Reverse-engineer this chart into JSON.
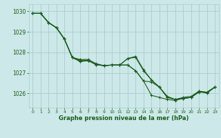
{
  "title": "Graphe pression niveau de la mer (hPa)",
  "background_color": "#cce8e8",
  "grid_color": "#aacccc",
  "line_color": "#1a5c1a",
  "text_color": "#1a5c1a",
  "xlim": [
    -0.5,
    23.5
  ],
  "ylim": [
    1025.3,
    1030.35
  ],
  "yticks": [
    1026,
    1027,
    1028,
    1029,
    1030
  ],
  "xticks": [
    0,
    1,
    2,
    3,
    4,
    5,
    6,
    7,
    8,
    9,
    10,
    11,
    12,
    13,
    14,
    15,
    16,
    17,
    18,
    19,
    20,
    21,
    22,
    23
  ],
  "lines": [
    [
      1029.9,
      1029.9,
      1029.45,
      1029.2,
      1028.65,
      1027.75,
      1027.65,
      1027.65,
      1027.45,
      1027.35,
      1027.38,
      1027.38,
      1027.38,
      1027.1,
      1026.6,
      1025.9,
      1025.8,
      1025.7,
      1025.65,
      1025.75,
      1025.8,
      1026.05,
      1026.05,
      1026.3
    ],
    [
      1029.9,
      1029.9,
      1029.45,
      1029.2,
      1028.65,
      1027.75,
      1027.6,
      1027.6,
      1027.4,
      1027.35,
      1027.38,
      1027.38,
      1027.7,
      1027.75,
      1027.1,
      1026.65,
      1026.3,
      1025.8,
      1025.7,
      1025.75,
      1025.8,
      1026.1,
      1026.05,
      1026.3
    ],
    [
      1029.9,
      1029.9,
      1029.45,
      1029.2,
      1028.65,
      1027.75,
      1027.55,
      1027.6,
      1027.4,
      1027.35,
      1027.38,
      1027.38,
      1027.7,
      1027.8,
      1027.15,
      1026.65,
      1026.3,
      1025.8,
      1025.7,
      1025.75,
      1025.8,
      1026.1,
      1026.05,
      1026.3
    ],
    [
      1029.9,
      1029.9,
      1029.45,
      1029.2,
      1028.65,
      1027.75,
      1027.55,
      1027.6,
      1027.4,
      1027.35,
      1027.38,
      1027.38,
      1027.38,
      1027.1,
      1026.6,
      1026.55,
      1026.3,
      1025.85,
      1025.7,
      1025.8,
      1025.85,
      1026.1,
      1026.0,
      1026.3
    ]
  ]
}
